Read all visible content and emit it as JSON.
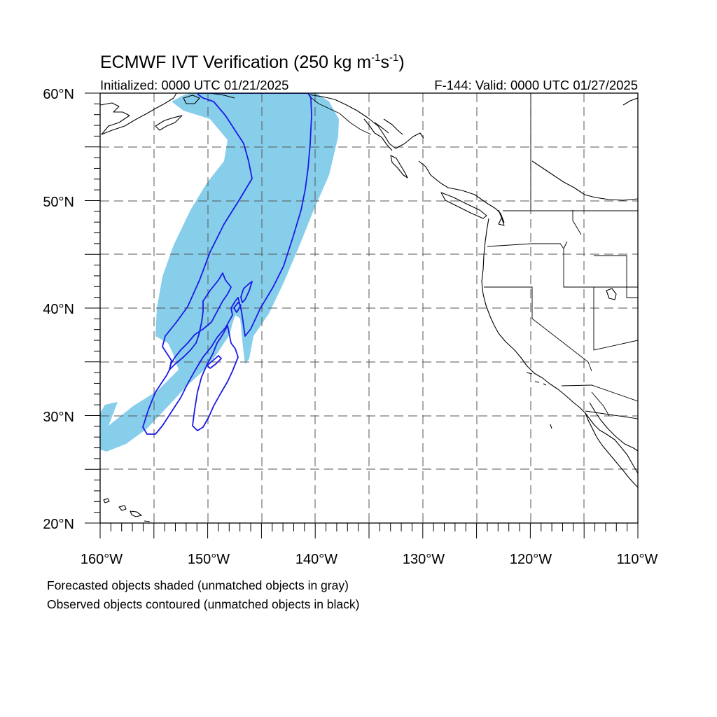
{
  "title": {
    "main": "ECMWF IVT Verification (250 kg m",
    "sup1": "-1",
    "mid": "s",
    "sup2": "-1",
    "end": ")"
  },
  "init_label": "Initialized: 0000 UTC 01/21/2025",
  "valid_label": "F-144: Valid: 0000 UTC 01/27/2025",
  "map": {
    "lon_range": [
      -160,
      -110
    ],
    "lat_range": [
      20,
      60
    ],
    "lat_labels": [
      "60°N",
      "50°N",
      "40°N",
      "30°N",
      "20°N"
    ],
    "lon_labels": [
      "160°W",
      "150°W",
      "140°W",
      "130°W",
      "120°W",
      "110°W"
    ],
    "forecast_color": "#87ceeb",
    "observed_color": "#1a1ae6"
  },
  "notes": {
    "forecast": "Forecasted objects shaded (unmatched objects in gray)",
    "observed": "Observed objects contoured (unmatched objects in black)"
  }
}
